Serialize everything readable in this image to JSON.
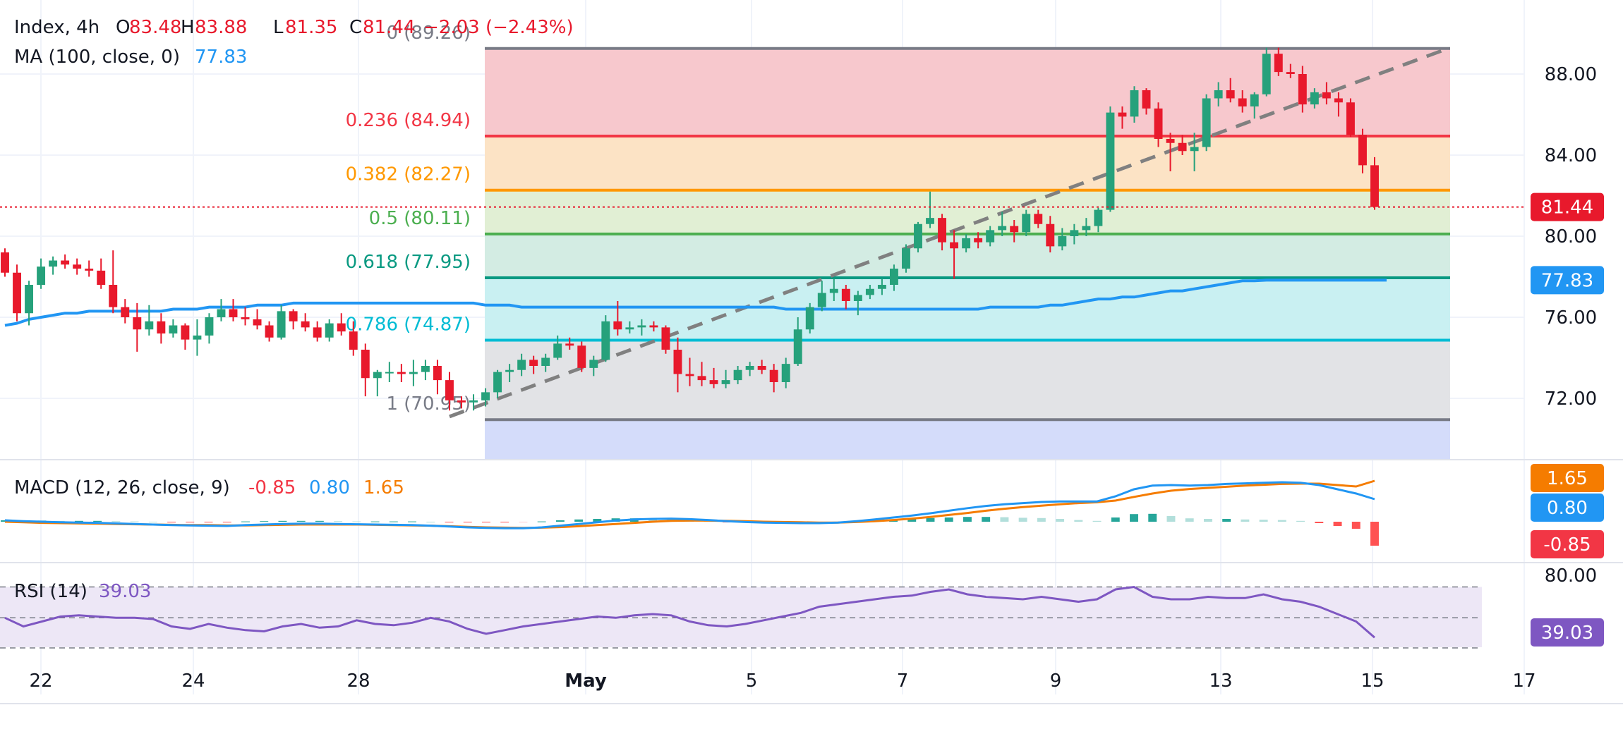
{
  "header": {
    "symbol": "Index, 4h",
    "o_label": "O",
    "o_value": "83.48",
    "h_label": "H",
    "h_value": "83.88",
    "l_label": "L",
    "l_value": "81.35",
    "c_label": "C",
    "c_value": "81.44",
    "change": "−2.03 (−2.43%)",
    "ma_label": "MA (100, close, 0)",
    "ma_value": "77.83"
  },
  "colors": {
    "up": "#26a17b",
    "down": "#e8192c",
    "ma": "#2196f3",
    "macd_line": "#2196f3",
    "signal_line": "#f57c00",
    "rsi_line": "#7e57c2",
    "trend_line": "#808080"
  },
  "price_axis": {
    "ticks": [
      "88.00",
      "84.00",
      "80.00",
      "76.00",
      "72.00"
    ],
    "last_price_label": "81.44",
    "ma_label": "77.83"
  },
  "time_axis": {
    "ticks": [
      "22",
      "24",
      "28",
      "May",
      "5",
      "7",
      "9",
      "13",
      "15",
      "17"
    ]
  },
  "fib_levels": [
    {
      "label": "0 (89.26)",
      "value": 89.26,
      "line_color": "#787b86",
      "fill": "#f7c8cd"
    },
    {
      "label": "0.236 (84.94)",
      "value": 84.94,
      "line_color": "#f23645",
      "fill": "#fce3c5"
    },
    {
      "label": "0.382 (82.27)",
      "value": 82.27,
      "line_color": "#ff9800",
      "fill": "#e1efd4"
    },
    {
      "label": "0.5 (80.11)",
      "value": 80.11,
      "line_color": "#4caf50",
      "fill": "#d3ece3"
    },
    {
      "label": "0.618 (77.95)",
      "value": 77.95,
      "line_color": "#089981",
      "fill": "#c9f0f2"
    },
    {
      "label": "0.786 (74.87)",
      "value": 74.87,
      "line_color": "#00bcd4",
      "fill": "#e2e3e6"
    },
    {
      "label": "1 (70.95)",
      "value": 70.95,
      "line_color": "#787b86",
      "fill": "#d4dcfa"
    }
  ],
  "macd": {
    "label": "MACD (12, 26, close, 9)",
    "hist_value": "-0.85",
    "macd_value": "0.80",
    "signal_value": "1.65",
    "macd_line": [
      0.05,
      0.02,
      0.0,
      -0.02,
      -0.03,
      -0.04,
      -0.06,
      -0.08,
      -0.1,
      -0.12,
      -0.13,
      -0.14,
      -0.15,
      -0.12,
      -0.1,
      -0.08,
      -0.07,
      -0.07,
      -0.08,
      -0.09,
      -0.1,
      -0.11,
      -0.12,
      -0.14,
      -0.17,
      -0.2,
      -0.22,
      -0.23,
      -0.23,
      -0.2,
      -0.14,
      -0.08,
      -0.02,
      0.04,
      0.08,
      0.1,
      0.11,
      0.09,
      0.06,
      0.02,
      -0.01,
      -0.03,
      -0.04,
      -0.05,
      -0.05,
      -0.03,
      0.02,
      0.08,
      0.15,
      0.22,
      0.3,
      0.39,
      0.48,
      0.56,
      0.62,
      0.66,
      0.7,
      0.72,
      0.72,
      0.72,
      0.9,
      1.15,
      1.28,
      1.3,
      1.28,
      1.3,
      1.34,
      1.36,
      1.38,
      1.4,
      1.38,
      1.3,
      1.15,
      1.0,
      0.8
    ],
    "signal_line": [
      0.0,
      -0.02,
      -0.04,
      -0.05,
      -0.06,
      -0.07,
      -0.08,
      -0.09,
      -0.1,
      -0.11,
      -0.12,
      -0.12,
      -0.13,
      -0.13,
      -0.12,
      -0.11,
      -0.1,
      -0.1,
      -0.1,
      -0.1,
      -0.11,
      -0.12,
      -0.13,
      -0.14,
      -0.16,
      -0.18,
      -0.2,
      -0.21,
      -0.22,
      -0.21,
      -0.19,
      -0.16,
      -0.12,
      -0.08,
      -0.04,
      0.0,
      0.03,
      0.04,
      0.04,
      0.03,
      0.02,
      0.0,
      -0.01,
      -0.02,
      -0.03,
      -0.03,
      -0.01,
      0.02,
      0.06,
      0.11,
      0.17,
      0.24,
      0.31,
      0.39,
      0.46,
      0.52,
      0.57,
      0.62,
      0.66,
      0.69,
      0.75,
      0.88,
      1.0,
      1.1,
      1.16,
      1.2,
      1.24,
      1.28,
      1.31,
      1.34,
      1.35,
      1.35,
      1.3,
      1.25,
      1.65
    ],
    "histogram": [
      0.05,
      0.04,
      0.04,
      0.03,
      0.03,
      0.03,
      0.02,
      0.01,
      0.0,
      -0.01,
      -0.01,
      -0.02,
      -0.02,
      0.01,
      0.02,
      0.03,
      0.03,
      0.03,
      0.02,
      0.01,
      0.01,
      0.01,
      0.01,
      0.0,
      -0.01,
      -0.02,
      -0.02,
      -0.02,
      -0.01,
      0.01,
      0.05,
      0.08,
      0.1,
      0.12,
      0.12,
      0.1,
      0.08,
      0.05,
      0.02,
      -0.01,
      -0.03,
      -0.03,
      -0.03,
      -0.03,
      -0.02,
      0.0,
      0.03,
      0.06,
      0.09,
      0.11,
      0.13,
      0.15,
      0.17,
      0.17,
      0.16,
      0.14,
      0.13,
      0.1,
      0.06,
      0.03,
      0.15,
      0.27,
      0.28,
      0.2,
      0.12,
      0.1,
      0.1,
      0.08,
      0.07,
      0.06,
      0.03,
      -0.05,
      -0.15,
      -0.25,
      -0.85
    ]
  },
  "rsi": {
    "label": "RSI (14)",
    "value": "39.03",
    "upper_label": "80.00",
    "series": [
      55,
      48,
      52,
      56,
      57,
      56,
      55,
      55,
      54,
      48,
      46,
      50,
      47,
      45,
      44,
      48,
      50,
      47,
      48,
      53,
      50,
      49,
      51,
      55,
      52,
      46,
      42,
      45,
      48,
      50,
      52,
      54,
      56,
      55,
      57,
      58,
      57,
      52,
      49,
      48,
      50,
      53,
      56,
      59,
      64,
      66,
      68,
      70,
      72,
      73,
      76,
      78,
      74,
      72,
      71,
      70,
      72,
      70,
      68,
      70,
      78,
      80,
      72,
      70,
      70,
      72,
      71,
      71,
      74,
      70,
      68,
      64,
      58,
      52,
      39.03
    ]
  },
  "chart_data": [
    {
      "type": "candlestick",
      "title": "Index, 4h",
      "ylim": [
        69.0,
        91.0
      ],
      "yticks": [
        72.0,
        76.0,
        80.0,
        84.0,
        88.0
      ],
      "x_ticks": [
        "22",
        "24",
        "28",
        "May",
        "5",
        "7",
        "9",
        "13",
        "15",
        "17"
      ],
      "candles": [
        [
          79.2,
          79.4,
          78.0,
          78.2
        ],
        [
          78.2,
          78.6,
          75.8,
          76.2
        ],
        [
          76.2,
          77.8,
          75.6,
          77.6
        ],
        [
          77.6,
          78.9,
          77.4,
          78.5
        ],
        [
          78.5,
          79.0,
          78.1,
          78.8
        ],
        [
          78.8,
          79.1,
          78.4,
          78.6
        ],
        [
          78.6,
          78.9,
          78.1,
          78.4
        ],
        [
          78.4,
          78.8,
          78.0,
          78.3
        ],
        [
          78.3,
          78.9,
          77.4,
          77.6
        ],
        [
          77.6,
          79.3,
          76.2,
          76.5
        ],
        [
          76.5,
          76.9,
          75.7,
          76.0
        ],
        [
          76.0,
          76.7,
          74.3,
          75.4
        ],
        [
          75.4,
          76.6,
          75.1,
          75.8
        ],
        [
          75.8,
          76.2,
          74.7,
          75.2
        ],
        [
          75.2,
          75.9,
          75.0,
          75.6
        ],
        [
          75.6,
          75.7,
          74.4,
          74.9
        ],
        [
          74.9,
          75.9,
          74.1,
          75.1
        ],
        [
          75.1,
          76.2,
          74.7,
          76.0
        ],
        [
          76.0,
          76.9,
          75.8,
          76.4
        ],
        [
          76.4,
          76.9,
          75.8,
          76.0
        ],
        [
          76.0,
          76.5,
          75.6,
          75.9
        ],
        [
          75.9,
          76.4,
          75.4,
          75.6
        ],
        [
          75.6,
          75.8,
          74.8,
          75.0
        ],
        [
          75.0,
          76.6,
          74.9,
          76.3
        ],
        [
          76.3,
          76.4,
          75.4,
          75.8
        ],
        [
          75.8,
          76.2,
          75.3,
          75.5
        ],
        [
          75.5,
          75.8,
          74.8,
          75.0
        ],
        [
          75.0,
          75.9,
          74.8,
          75.7
        ],
        [
          75.7,
          76.2,
          75.1,
          75.3
        ],
        [
          75.3,
          75.8,
          74.1,
          74.4
        ],
        [
          74.4,
          74.7,
          72.1,
          73.0
        ],
        [
          73.0,
          73.4,
          72.1,
          73.3
        ],
        [
          73.3,
          73.8,
          72.8,
          73.3
        ],
        [
          73.3,
          73.7,
          72.8,
          73.2
        ],
        [
          73.2,
          73.9,
          72.6,
          73.3
        ],
        [
          73.3,
          73.9,
          72.9,
          73.6
        ],
        [
          73.6,
          73.9,
          72.2,
          72.9
        ],
        [
          72.9,
          73.3,
          71.4,
          71.9
        ],
        [
          71.9,
          72.1,
          71.5,
          71.8
        ],
        [
          71.8,
          72.2,
          71.4,
          71.9
        ],
        [
          71.9,
          72.5,
          71.6,
          72.3
        ],
        [
          72.3,
          73.4,
          72.0,
          73.3
        ],
        [
          73.3,
          73.7,
          72.8,
          73.4
        ],
        [
          73.4,
          74.2,
          73.1,
          73.9
        ],
        [
          73.9,
          74.1,
          73.2,
          73.6
        ],
        [
          73.6,
          74.2,
          73.3,
          74.0
        ],
        [
          74.0,
          75.1,
          73.9,
          74.7
        ],
        [
          74.7,
          75.0,
          74.4,
          74.6
        ],
        [
          74.6,
          74.8,
          73.3,
          73.5
        ],
        [
          73.5,
          74.1,
          73.1,
          73.9
        ],
        [
          73.9,
          76.1,
          73.8,
          75.8
        ],
        [
          75.8,
          76.8,
          75.1,
          75.4
        ],
        [
          75.4,
          75.8,
          75.2,
          75.5
        ],
        [
          75.5,
          75.9,
          75.1,
          75.6
        ],
        [
          75.6,
          75.8,
          75.3,
          75.5
        ],
        [
          75.5,
          75.6,
          74.2,
          74.4
        ],
        [
          74.4,
          75.0,
          72.3,
          73.2
        ],
        [
          73.2,
          74.0,
          72.6,
          73.1
        ],
        [
          73.1,
          73.8,
          72.6,
          72.9
        ],
        [
          72.9,
          73.5,
          72.5,
          72.7
        ],
        [
          72.7,
          73.4,
          72.5,
          72.9
        ],
        [
          72.9,
          73.6,
          72.7,
          73.4
        ],
        [
          73.4,
          73.8,
          73.1,
          73.6
        ],
        [
          73.6,
          73.9,
          73.2,
          73.4
        ],
        [
          73.4,
          73.7,
          72.3,
          72.8
        ],
        [
          72.8,
          74.0,
          72.5,
          73.7
        ],
        [
          73.7,
          76.0,
          73.6,
          75.4
        ],
        [
          75.4,
          76.7,
          75.2,
          76.5
        ],
        [
          76.5,
          77.8,
          76.3,
          77.2
        ],
        [
          77.2,
          77.9,
          76.8,
          77.4
        ],
        [
          77.4,
          77.6,
          76.4,
          76.8
        ],
        [
          76.8,
          77.3,
          76.1,
          77.1
        ],
        [
          77.1,
          77.6,
          76.9,
          77.4
        ],
        [
          77.4,
          77.9,
          77.1,
          77.6
        ],
        [
          77.6,
          78.6,
          77.3,
          78.4
        ],
        [
          78.4,
          79.6,
          78.2,
          79.4
        ],
        [
          79.4,
          80.7,
          79.2,
          80.6
        ],
        [
          80.6,
          82.2,
          80.4,
          80.9
        ],
        [
          80.9,
          81.1,
          79.3,
          79.7
        ],
        [
          79.7,
          80.3,
          77.9,
          79.4
        ],
        [
          79.4,
          80.1,
          79.2,
          79.9
        ],
        [
          79.9,
          80.2,
          79.4,
          79.7
        ],
        [
          79.7,
          80.5,
          79.5,
          80.3
        ],
        [
          80.3,
          81.2,
          80.0,
          80.5
        ],
        [
          80.5,
          80.8,
          79.7,
          80.2
        ],
        [
          80.2,
          81.3,
          80.0,
          81.1
        ],
        [
          81.1,
          81.3,
          80.4,
          80.6
        ],
        [
          80.6,
          81.0,
          79.2,
          79.5
        ],
        [
          79.5,
          80.4,
          79.3,
          80.0
        ],
        [
          80.0,
          80.6,
          79.6,
          80.3
        ],
        [
          80.3,
          80.9,
          80.0,
          80.5
        ],
        [
          80.5,
          81.4,
          80.2,
          81.3
        ],
        [
          81.3,
          86.4,
          81.2,
          86.1
        ],
        [
          86.1,
          86.4,
          85.3,
          85.9
        ],
        [
          85.9,
          87.4,
          85.6,
          87.2
        ],
        [
          87.2,
          87.3,
          86.0,
          86.3
        ],
        [
          86.3,
          86.6,
          84.4,
          84.8
        ],
        [
          84.8,
          85.1,
          83.2,
          84.6
        ],
        [
          84.6,
          85.0,
          84.0,
          84.2
        ],
        [
          84.2,
          85.1,
          83.2,
          84.4
        ],
        [
          84.4,
          87.0,
          84.2,
          86.8
        ],
        [
          86.8,
          87.6,
          86.4,
          87.2
        ],
        [
          87.2,
          87.8,
          86.6,
          86.8
        ],
        [
          86.8,
          87.2,
          86.1,
          86.4
        ],
        [
          86.4,
          87.1,
          85.8,
          87.0
        ],
        [
          87.0,
          89.3,
          86.9,
          89.0
        ],
        [
          89.0,
          89.3,
          87.9,
          88.1
        ],
        [
          88.1,
          88.5,
          87.8,
          88.0
        ],
        [
          88.0,
          88.4,
          86.1,
          86.5
        ],
        [
          86.5,
          87.3,
          86.3,
          87.1
        ],
        [
          87.1,
          87.6,
          86.5,
          86.8
        ],
        [
          86.8,
          87.1,
          85.9,
          86.6
        ],
        [
          86.6,
          86.8,
          84.9,
          85.0
        ],
        [
          85.0,
          85.3,
          83.1,
          83.5
        ],
        [
          83.5,
          83.9,
          81.3,
          81.44
        ]
      ],
      "ma100": [
        75.6,
        75.7,
        75.9,
        76.0,
        76.1,
        76.2,
        76.2,
        76.3,
        76.3,
        76.3,
        76.3,
        76.3,
        76.3,
        76.3,
        76.4,
        76.4,
        76.4,
        76.5,
        76.5,
        76.5,
        76.5,
        76.6,
        76.6,
        76.6,
        76.7,
        76.7,
        76.7,
        76.7,
        76.7,
        76.7,
        76.7,
        76.7,
        76.7,
        76.7,
        76.7,
        76.7,
        76.7,
        76.7,
        76.7,
        76.7,
        76.6,
        76.6,
        76.6,
        76.5,
        76.5,
        76.5,
        76.5,
        76.5,
        76.5,
        76.5,
        76.5,
        76.5,
        76.5,
        76.5,
        76.5,
        76.5,
        76.5,
        76.5,
        76.5,
        76.5,
        76.5,
        76.5,
        76.5,
        76.5,
        76.5,
        76.4,
        76.4,
        76.4,
        76.4,
        76.4,
        76.4,
        76.4,
        76.4,
        76.4,
        76.4,
        76.4,
        76.4,
        76.4,
        76.4,
        76.4,
        76.4,
        76.4,
        76.5,
        76.5,
        76.5,
        76.5,
        76.5,
        76.6,
        76.6,
        76.7,
        76.8,
        76.9,
        76.9,
        77.0,
        77.0,
        77.1,
        77.2,
        77.3,
        77.3,
        77.4,
        77.5,
        77.6,
        77.7,
        77.8,
        77.8,
        77.83,
        77.83,
        77.83,
        77.83,
        77.83,
        77.83,
        77.83,
        77.83,
        77.83,
        77.83,
        77.83
      ],
      "fib_retracement": {
        "from": 70.95,
        "to": 89.26
      }
    }
  ]
}
